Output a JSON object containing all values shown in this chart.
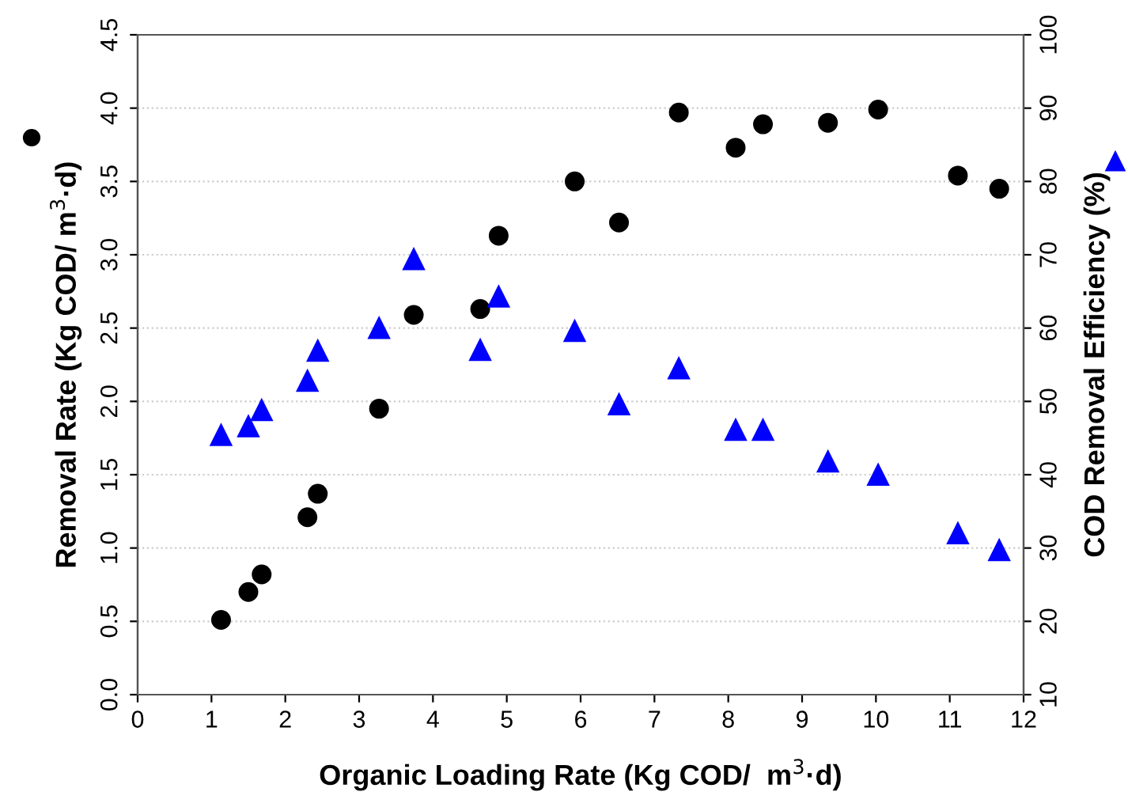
{
  "chart_data": {
    "type": "scatter",
    "xlabel": "Organic Loading Rate (Kg COD/  m$^{3}$·d)",
    "ylabel": "Removal Rate (Kg COD/ m$^{3}$·d)",
    "y2label": "COD Removal Efficiency (%)",
    "series": [
      {
        "color": "#000000",
        "marker": "circle",
        "x": [
          1.13,
          1.5,
          1.68,
          2.3,
          2.44,
          3.27,
          3.74,
          4.64,
          4.89,
          5.92,
          6.52,
          7.33,
          8.1,
          8.47,
          9.35,
          10.03,
          11.11,
          11.67
        ],
        "values": [
          0.51,
          0.7,
          0.82,
          1.21,
          1.37,
          1.95,
          2.59,
          2.63,
          3.13,
          3.5,
          3.22,
          3.97,
          3.73,
          3.89,
          3.9,
          3.99,
          3.54,
          3.45
        ]
      },
      {
        "color": "#0000ff",
        "marker": "triangle",
        "axis": "y2",
        "x": [
          1.13,
          1.5,
          1.68,
          2.3,
          2.44,
          3.27,
          3.74,
          4.64,
          4.89,
          5.92,
          6.52,
          7.33,
          8.1,
          8.47,
          9.35,
          10.03,
          11.11,
          11.67
        ],
        "values": [
          45.4,
          46.6,
          48.8,
          52.8,
          56.9,
          60.0,
          69.4,
          57.0,
          64.3,
          59.6,
          49.6,
          54.5,
          46.1,
          46.1,
          41.8,
          40.0,
          32.0,
          29.7
        ]
      }
    ],
    "xlim": [
      0,
      12
    ],
    "xticks": [
      0,
      1,
      2,
      3,
      4,
      5,
      6,
      7,
      8,
      9,
      10,
      11,
      12
    ],
    "ylim": [
      0,
      4.5
    ],
    "yticks": [
      {
        "value": 0,
        "label": "0.0"
      },
      {
        "value": 0.5,
        "label": "0.5"
      },
      {
        "value": 1,
        "label": "1.0"
      },
      {
        "value": 1.5,
        "label": "1.5"
      },
      {
        "value": 2,
        "label": "2.0"
      },
      {
        "value": 2.5,
        "label": "2.5"
      },
      {
        "value": 3,
        "label": "3.0"
      },
      {
        "value": 3.5,
        "label": "3.5"
      },
      {
        "value": 4,
        "label": "4.0"
      },
      {
        "value": 4.5,
        "label": "4.5"
      }
    ],
    "y2lim": [
      10,
      100
    ],
    "y2ticks": [
      10,
      20,
      30,
      40,
      50,
      60,
      70,
      80,
      90,
      100
    ],
    "grid": "y",
    "legend": false
  }
}
